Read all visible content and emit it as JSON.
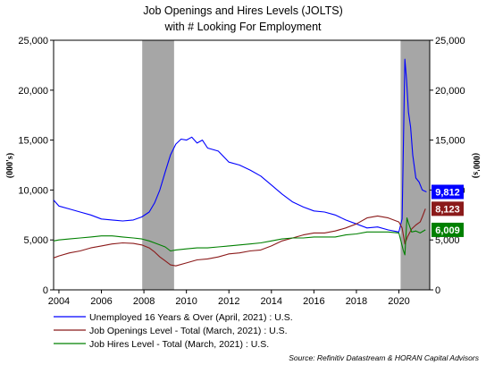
{
  "chart_data": {
    "type": "line",
    "title": "Job Openings and Hires Levels (JOLTS)",
    "subtitle": "with # Looking For Employment",
    "ylabel_left": "(000's)",
    "ylabel_right": "(000's)",
    "ylim": [
      0,
      25000
    ],
    "y_ticks": [
      "0",
      "5,000",
      "10,000",
      "15,000",
      "20,000",
      "25,000"
    ],
    "xlim": [
      2003.75,
      2021.45
    ],
    "x_ticks": [
      "2004",
      "2006",
      "2008",
      "2010",
      "2012",
      "2014",
      "2016",
      "2018",
      "2020"
    ],
    "grid": false,
    "legend_position": "bottom",
    "recessions": [
      [
        2007.92,
        2009.42
      ],
      [
        2020.08,
        2021.45
      ]
    ],
    "series": [
      {
        "name": "Unemployed 16 Years & Over (April, 2021) : U.S.",
        "color": "#0000ff",
        "last_label": "9,812",
        "badge_color": "#0000ff",
        "points": [
          [
            2003.75,
            9000
          ],
          [
            2004.0,
            8400
          ],
          [
            2004.5,
            8100
          ],
          [
            2005.0,
            7800
          ],
          [
            2005.5,
            7500
          ],
          [
            2006.0,
            7100
          ],
          [
            2006.5,
            7000
          ],
          [
            2007.0,
            6900
          ],
          [
            2007.5,
            7000
          ],
          [
            2007.9,
            7300
          ],
          [
            2008.25,
            7800
          ],
          [
            2008.5,
            8700
          ],
          [
            2008.75,
            10000
          ],
          [
            2009.0,
            11800
          ],
          [
            2009.25,
            13500
          ],
          [
            2009.5,
            14600
          ],
          [
            2009.75,
            15100
          ],
          [
            2010.0,
            15000
          ],
          [
            2010.25,
            15300
          ],
          [
            2010.5,
            14700
          ],
          [
            2010.75,
            15000
          ],
          [
            2011.0,
            14200
          ],
          [
            2011.5,
            13900
          ],
          [
            2012.0,
            12800
          ],
          [
            2012.5,
            12500
          ],
          [
            2013.0,
            12000
          ],
          [
            2013.5,
            11400
          ],
          [
            2014.0,
            10500
          ],
          [
            2014.5,
            9600
          ],
          [
            2015.0,
            8800
          ],
          [
            2015.5,
            8300
          ],
          [
            2016.0,
            7900
          ],
          [
            2016.5,
            7800
          ],
          [
            2017.0,
            7500
          ],
          [
            2017.5,
            7000
          ],
          [
            2018.0,
            6600
          ],
          [
            2018.5,
            6200
          ],
          [
            2019.0,
            6300
          ],
          [
            2019.5,
            6000
          ],
          [
            2020.0,
            5800
          ],
          [
            2020.15,
            7100
          ],
          [
            2020.28,
            23100
          ],
          [
            2020.36,
            21000
          ],
          [
            2020.45,
            17800
          ],
          [
            2020.55,
            16300
          ],
          [
            2020.65,
            13500
          ],
          [
            2020.8,
            11200
          ],
          [
            2020.95,
            10800
          ],
          [
            2021.1,
            10000
          ],
          [
            2021.3,
            9812
          ]
        ]
      },
      {
        "name": "Job Openings Level - Total (March, 2021) : U.S.",
        "color": "#8b1a1a",
        "last_label": "8,123",
        "badge_color": "#8b1a1a",
        "points": [
          [
            2003.75,
            3200
          ],
          [
            2004.0,
            3400
          ],
          [
            2004.5,
            3700
          ],
          [
            2005.0,
            3900
          ],
          [
            2005.5,
            4200
          ],
          [
            2006.0,
            4400
          ],
          [
            2006.5,
            4600
          ],
          [
            2007.0,
            4700
          ],
          [
            2007.5,
            4650
          ],
          [
            2007.9,
            4500
          ],
          [
            2008.25,
            4200
          ],
          [
            2008.5,
            3800
          ],
          [
            2008.75,
            3300
          ],
          [
            2009.0,
            2900
          ],
          [
            2009.25,
            2500
          ],
          [
            2009.5,
            2400
          ],
          [
            2010.0,
            2700
          ],
          [
            2010.5,
            3000
          ],
          [
            2011.0,
            3100
          ],
          [
            2011.5,
            3300
          ],
          [
            2012.0,
            3600
          ],
          [
            2012.5,
            3700
          ],
          [
            2013.0,
            3900
          ],
          [
            2013.5,
            4000
          ],
          [
            2014.0,
            4400
          ],
          [
            2014.5,
            4900
          ],
          [
            2015.0,
            5200
          ],
          [
            2015.5,
            5500
          ],
          [
            2016.0,
            5700
          ],
          [
            2016.5,
            5700
          ],
          [
            2017.0,
            5900
          ],
          [
            2017.5,
            6200
          ],
          [
            2018.0,
            6600
          ],
          [
            2018.5,
            7200
          ],
          [
            2019.0,
            7400
          ],
          [
            2019.5,
            7200
          ],
          [
            2020.0,
            6800
          ],
          [
            2020.15,
            6200
          ],
          [
            2020.28,
            4600
          ],
          [
            2020.4,
            5300
          ],
          [
            2020.6,
            6100
          ],
          [
            2020.8,
            6500
          ],
          [
            2021.0,
            6800
          ],
          [
            2021.1,
            7300
          ],
          [
            2021.25,
            8123
          ]
        ]
      },
      {
        "name": "Job Hires Level - Total (March, 2021) : U.S.",
        "color": "#008000",
        "last_label": "6,009",
        "badge_color": "#008000",
        "points": [
          [
            2003.75,
            4900
          ],
          [
            2004.0,
            5000
          ],
          [
            2004.5,
            5100
          ],
          [
            2005.0,
            5200
          ],
          [
            2005.5,
            5300
          ],
          [
            2006.0,
            5400
          ],
          [
            2006.5,
            5400
          ],
          [
            2007.0,
            5300
          ],
          [
            2007.5,
            5200
          ],
          [
            2007.9,
            5100
          ],
          [
            2008.25,
            4900
          ],
          [
            2008.5,
            4700
          ],
          [
            2009.0,
            4300
          ],
          [
            2009.25,
            3900
          ],
          [
            2009.5,
            4000
          ],
          [
            2010.0,
            4100
          ],
          [
            2010.5,
            4200
          ],
          [
            2011.0,
            4200
          ],
          [
            2011.5,
            4300
          ],
          [
            2012.0,
            4400
          ],
          [
            2012.5,
            4500
          ],
          [
            2013.0,
            4600
          ],
          [
            2013.5,
            4700
          ],
          [
            2014.0,
            4900
          ],
          [
            2014.5,
            5100
          ],
          [
            2015.0,
            5200
          ],
          [
            2015.5,
            5200
          ],
          [
            2016.0,
            5300
          ],
          [
            2016.5,
            5300
          ],
          [
            2017.0,
            5300
          ],
          [
            2017.5,
            5500
          ],
          [
            2018.0,
            5600
          ],
          [
            2018.5,
            5800
          ],
          [
            2019.0,
            5800
          ],
          [
            2019.5,
            5800
          ],
          [
            2020.0,
            5700
          ],
          [
            2020.2,
            4000
          ],
          [
            2020.28,
            3500
          ],
          [
            2020.38,
            7200
          ],
          [
            2020.45,
            6700
          ],
          [
            2020.6,
            5800
          ],
          [
            2020.8,
            5900
          ],
          [
            2021.0,
            5700
          ],
          [
            2021.25,
            6009
          ]
        ]
      }
    ]
  },
  "source": "Source: Refinitiv Datastream & HORAN Capital Advisors"
}
